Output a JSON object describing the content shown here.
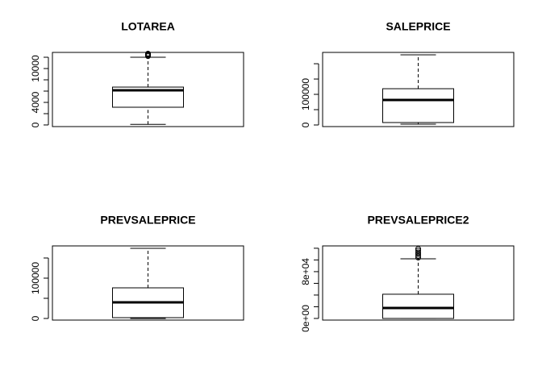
{
  "chart_data": [
    {
      "type": "box",
      "title": "LOTAREA",
      "stats": {
        "whisker_low": 100,
        "q1": 3140,
        "median": 6140,
        "q3": 6710,
        "whisker_high": 12000
      },
      "outliers": [
        12200,
        12350,
        12450,
        12550,
        12650
      ],
      "ylim": [
        -290,
        12860
      ],
      "yticks": [
        0,
        4000,
        10000
      ],
      "yticks_minor": [
        2000,
        6000,
        8000,
        12000
      ]
    },
    {
      "type": "box",
      "title": "SALEPRICE",
      "stats": {
        "whisker_low": 2600,
        "q1": 7900,
        "median": 81600,
        "q3": 118400,
        "whisker_high": 229000
      },
      "outliers": [],
      "ylim": [
        -5300,
        237000
      ],
      "yticks": [
        0,
        100000
      ],
      "yticks_minor": [
        50000,
        150000,
        200000
      ]
    },
    {
      "type": "box",
      "title": "PREVSALEPRICE",
      "stats": {
        "whisker_low": 0,
        "q1": 2000,
        "median": 40000,
        "q3": 76000,
        "whisker_high": 174000
      },
      "outliers": [],
      "ylim": [
        -4000,
        180000
      ],
      "yticks": [
        0,
        100000
      ],
      "yticks_minor": [
        50000,
        150000
      ]
    },
    {
      "type": "box",
      "title": "PREVSALEPRICE2",
      "stats": {
        "whisker_low": 0,
        "q1": 0,
        "median": 17900,
        "q3": 41400,
        "whisker_high": 102000
      },
      "outliers": [
        104000,
        107000,
        110000,
        113000,
        116000,
        119000
      ],
      "ylim": [
        -2800,
        124000
      ],
      "yticks": [
        {
          "value": 0,
          "label": "0e+00"
        },
        {
          "value": 80000,
          "label": "8e+04"
        }
      ],
      "yticks_minor": [
        20000,
        40000,
        60000,
        100000,
        120000
      ]
    }
  ]
}
